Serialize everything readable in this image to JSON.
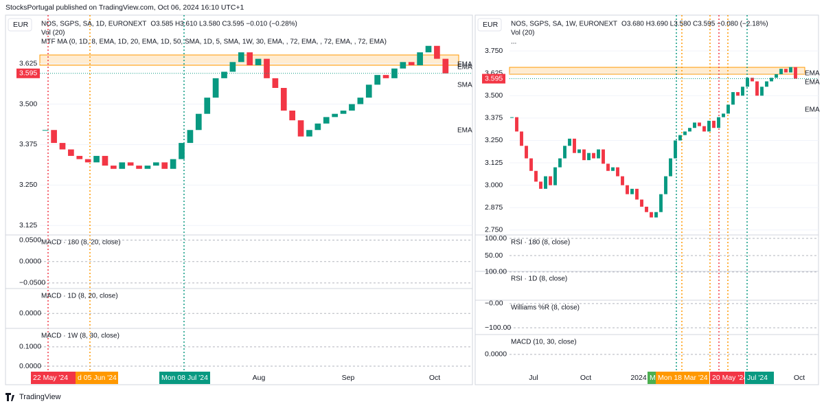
{
  "header": {
    "publisher": "StocksPortugal published on TradingView.com, Oct 06, 2024 16:10 UTC+1"
  },
  "footer": {
    "brand": "TradingView"
  },
  "chart_data": [
    {
      "type": "candlestick",
      "currency": "EUR",
      "title": "NOS, SGPS, SA, 1D, EURONEXT",
      "ohlc": "O3.585 H3.610 L3.580 C3.595 −0.010 (−0.28%)",
      "legend_lines": [
        "Vol (20)",
        "MTF MA (0, 1D, 8, EMA, 1D, 20, EMA, 1D, 50, SMA, 1D, 5, SMA, 1W, 30, EMA, , 72, EMA, , 72, EMA, , 72, EMA)"
      ],
      "ma_labels": [
        "EMA",
        "EMA",
        "SMA",
        "EMA"
      ],
      "up_color": "#089981",
      "down_color": "#f23645",
      "values": [
        3.42,
        3.38,
        3.36,
        3.34,
        3.33,
        3.32,
        3.34,
        3.31,
        3.3,
        3.32,
        3.31,
        3.3,
        3.31,
        3.32,
        3.3,
        3.33,
        3.38,
        3.42,
        3.47,
        3.52,
        3.58,
        3.6,
        3.63,
        3.66,
        3.62,
        3.64,
        3.58,
        3.55,
        3.48,
        3.45,
        3.4,
        3.42,
        3.44,
        3.46,
        3.47,
        3.48,
        3.5,
        3.52,
        3.56,
        3.59,
        3.58,
        3.61,
        3.63,
        3.62,
        3.66,
        3.68,
        3.64,
        3.595
      ],
      "last_price": 3.595,
      "ylim": [
        3.1,
        3.775
      ],
      "yticks": [
        3.625,
        {
          "value": 3.5,
          "label": "3.500"
        },
        3.375,
        {
          "value": 3.25,
          "label": "3.250"
        },
        3.125
      ],
      "x_labels": [
        "Aug",
        "Sep",
        "Oct"
      ],
      "date_tags": [
        "22 May '24",
        "d 05 Jun '24",
        "Mon 08 Jul '24"
      ],
      "panes": [
        {
          "title": "MACD · 180 (8, 20, close)",
          "ylim": [
            -0.063,
            0.062
          ],
          "yticks": [
            {
              "value": 0.05,
              "label": "0.0500"
            },
            {
              "value": 0,
              "label": "0.0000"
            },
            {
              "value": -0.05,
              "label": "−0.0500"
            }
          ]
        },
        {
          "title": "MACD · 1D (8, 20, close)",
          "ylim": [
            -0.03,
            0.05
          ],
          "yticks": [
            {
              "value": 0,
              "label": "0.0000"
            }
          ]
        },
        {
          "title": "MACD · 1W (8, 30, close)",
          "ylim": [
            -0.025,
            0.196
          ],
          "yticks": [
            {
              "value": 0.1,
              "label": "0.1000"
            },
            {
              "value": 0,
              "label": "0.0000"
            }
          ]
        }
      ]
    },
    {
      "type": "candlestick",
      "currency": "EUR",
      "title": "NOS, SGPS, SA, 1W, EURONEXT",
      "ohlc": "O3.680 H3.690 L3.580 C3.595 −0.080 (−2.18%)",
      "legend_lines": [
        "Vol (20)",
        "..."
      ],
      "ma_labels": [
        "EMA",
        "EMA",
        "EMA"
      ],
      "up_color": "#089981",
      "down_color": "#f23645",
      "values": [
        3.38,
        3.3,
        3.22,
        3.15,
        3.08,
        3.02,
        2.98,
        3.05,
        3.0,
        3.1,
        3.15,
        3.22,
        3.26,
        3.18,
        3.2,
        3.14,
        3.18,
        3.15,
        3.2,
        3.12,
        3.08,
        3.1,
        3.05,
        3.0,
        2.95,
        2.98,
        2.92,
        2.88,
        2.85,
        2.82,
        2.85,
        2.95,
        3.05,
        3.15,
        3.25,
        3.28,
        3.3,
        3.32,
        3.35,
        3.33,
        3.3,
        3.36,
        3.32,
        3.38,
        3.4,
        3.45,
        3.52,
        3.5,
        3.55,
        3.6,
        3.58,
        3.5,
        3.55,
        3.58,
        3.6,
        3.62,
        3.65,
        3.63,
        3.66,
        3.595
      ],
      "last_price": 3.595,
      "ylim": [
        2.73,
        3.95
      ],
      "yticks": [
        {
          "value": 3.75,
          "label": "3.750"
        },
        3.625,
        {
          "value": 3.5,
          "label": "3.500"
        },
        3.375,
        {
          "value": 3.25,
          "label": "3.250"
        },
        3.125,
        {
          "value": 3,
          "label": "3.000"
        },
        2.875,
        {
          "value": 2.75,
          "label": "2.750"
        }
      ],
      "x_labels": [
        "Jul",
        "Oct",
        "2024",
        "Oct"
      ],
      "date_tags": [
        "M",
        "Mon 18 Mar '24",
        "20 May '24",
        "Jul '24"
      ],
      "panes": [
        {
          "title": "RSI · 180 (8, close)",
          "ylim": [
            4,
            110
          ],
          "yticks": [
            {
              "value": 100,
              "label": "100.00"
            },
            {
              "value": 50,
              "label": "50.00"
            }
          ]
        },
        {
          "title": "RSI · 1D (8, close)",
          "ylim": [
            0,
            102
          ],
          "yticks": [
            {
              "value": 100,
              "label": "100.00"
            }
          ]
        },
        {
          "title": "Williams %R (8, close)",
          "ylim": [
            -128,
            14
          ],
          "yticks": [
            {
              "value": 0,
              "label": "−0.00"
            },
            {
              "value": -100,
              "label": "−100.00"
            }
          ]
        },
        {
          "title": "MACD (10, 30, close)",
          "ylim": [
            -0.1,
            0.12
          ],
          "yticks": [
            {
              "value": 0,
              "label": "0.0000"
            }
          ]
        }
      ]
    }
  ]
}
